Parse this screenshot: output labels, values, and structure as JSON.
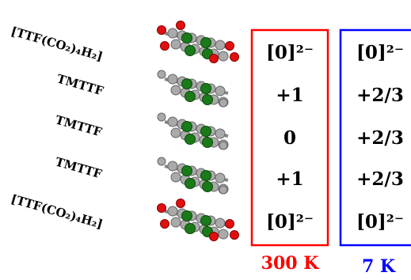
{
  "molecules": [
    "[TTF(CO₂)₄H₂]",
    "TMTTF",
    "TMTTF",
    "TMTTF",
    "[TTF(CO₂)₄H₂]"
  ],
  "columns": [
    {
      "label": "300 K",
      "color": "#ff0000",
      "charges": [
        "[0]²⁻",
        "+1",
        "0",
        "+1",
        "[0]²⁻"
      ]
    },
    {
      "label": "7 K",
      "color": "#0000ff",
      "charges": [
        "[0]²⁻",
        "+2/3",
        "+2/3",
        "+2/3",
        "[0]²⁻"
      ]
    }
  ]
}
